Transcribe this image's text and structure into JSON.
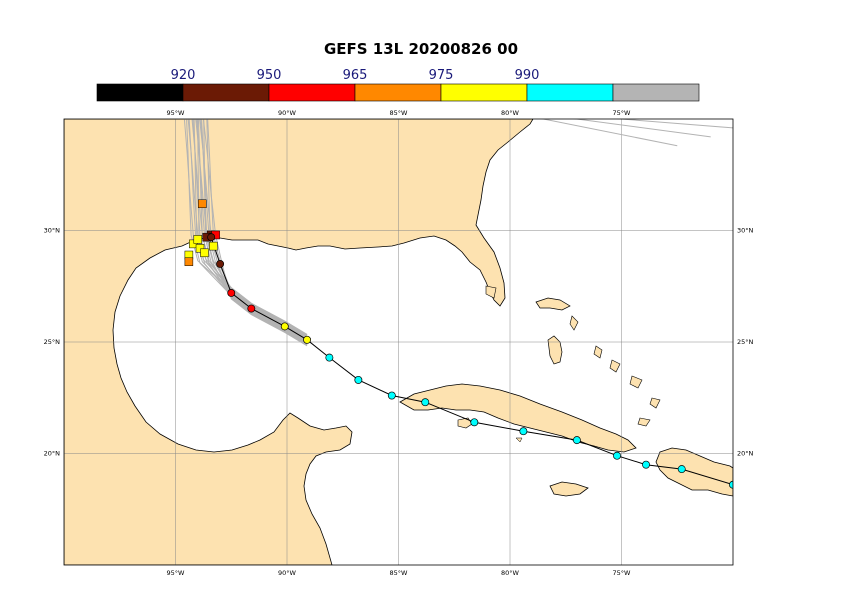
{
  "title": "GEFS 13L 20200826 00",
  "legend": {
    "bins": [
      {
        "color": "#000000"
      },
      {
        "color": "#6b1a05"
      },
      {
        "color": "#ff0000"
      },
      {
        "color": "#ff8800"
      },
      {
        "color": "#ffff00"
      },
      {
        "color": "#00ffff"
      },
      {
        "color": "#b4b4b4"
      }
    ],
    "labels": [
      "920",
      "950",
      "965",
      "975",
      "990"
    ]
  },
  "map": {
    "land_color": "#fde2b0",
    "ocean_color": "#ffffff",
    "ensemble_color": "#b3b3b3",
    "lon_ticks": [
      "95°W",
      "90°W",
      "85°W",
      "80°W",
      "75°W"
    ],
    "lat_ticks": [
      "30°N",
      "25°N",
      "20°N"
    ],
    "lon_range": [
      -100,
      -70
    ],
    "lat_range": [
      15,
      35
    ]
  },
  "track": {
    "points": [
      {
        "lon": -70.0,
        "lat": 18.6,
        "pressure": 1002,
        "color": "#00ffff"
      },
      {
        "lon": -72.3,
        "lat": 19.3,
        "pressure": 1002,
        "color": "#00ffff"
      },
      {
        "lon": -73.9,
        "lat": 19.5,
        "pressure": 1001,
        "color": "#00ffff"
      },
      {
        "lon": -75.2,
        "lat": 19.9,
        "pressure": 1001,
        "color": "#00ffff"
      },
      {
        "lon": -77.0,
        "lat": 20.6,
        "pressure": 1000,
        "color": "#00ffff"
      },
      {
        "lon": -79.4,
        "lat": 21.0,
        "pressure": 999,
        "color": "#00ffff"
      },
      {
        "lon": -81.6,
        "lat": 21.4,
        "pressure": 998,
        "color": "#00ffff"
      },
      {
        "lon": -83.8,
        "lat": 22.3,
        "pressure": 996,
        "color": "#00ffff"
      },
      {
        "lon": -85.3,
        "lat": 22.6,
        "pressure": 995,
        "color": "#00ffff"
      },
      {
        "lon": -86.8,
        "lat": 23.3,
        "pressure": 994,
        "color": "#00ffff"
      },
      {
        "lon": -88.1,
        "lat": 24.3,
        "pressure": 992,
        "color": "#00ffff"
      },
      {
        "lon": -89.1,
        "lat": 25.1,
        "pressure": 985,
        "color": "#ffff00"
      },
      {
        "lon": -90.1,
        "lat": 25.7,
        "pressure": 980,
        "color": "#ffff00"
      },
      {
        "lon": -91.6,
        "lat": 26.5,
        "pressure": 962,
        "color": "#ff0000"
      },
      {
        "lon": -92.5,
        "lat": 27.2,
        "pressure": 955,
        "color": "#ff0000"
      },
      {
        "lon": -93.0,
        "lat": 28.5,
        "pressure": 945,
        "color": "#6b1a05"
      },
      {
        "lon": -93.4,
        "lat": 29.7,
        "pressure": 940,
        "color": "#6b1a05"
      }
    ],
    "ensemble_landfall": [
      {
        "lon": -93.8,
        "lat": 31.2,
        "color": "#ff8800"
      },
      {
        "lon": -93.4,
        "lat": 29.8,
        "color": "#6b1a05"
      },
      {
        "lon": -93.6,
        "lat": 29.7,
        "color": "#6b1a05"
      },
      {
        "lon": -93.2,
        "lat": 29.8,
        "color": "#ff0000"
      },
      {
        "lon": -94.2,
        "lat": 29.4,
        "color": "#ffff00"
      },
      {
        "lon": -93.9,
        "lat": 29.2,
        "color": "#ffff00"
      },
      {
        "lon": -94.4,
        "lat": 28.9,
        "color": "#ffff00"
      },
      {
        "lon": -94.0,
        "lat": 29.6,
        "color": "#ffff00"
      },
      {
        "lon": -93.7,
        "lat": 29.0,
        "color": "#ffff00"
      },
      {
        "lon": -94.4,
        "lat": 28.6,
        "color": "#ff8800"
      },
      {
        "lon": -93.3,
        "lat": 29.3,
        "color": "#ffff00"
      }
    ]
  }
}
